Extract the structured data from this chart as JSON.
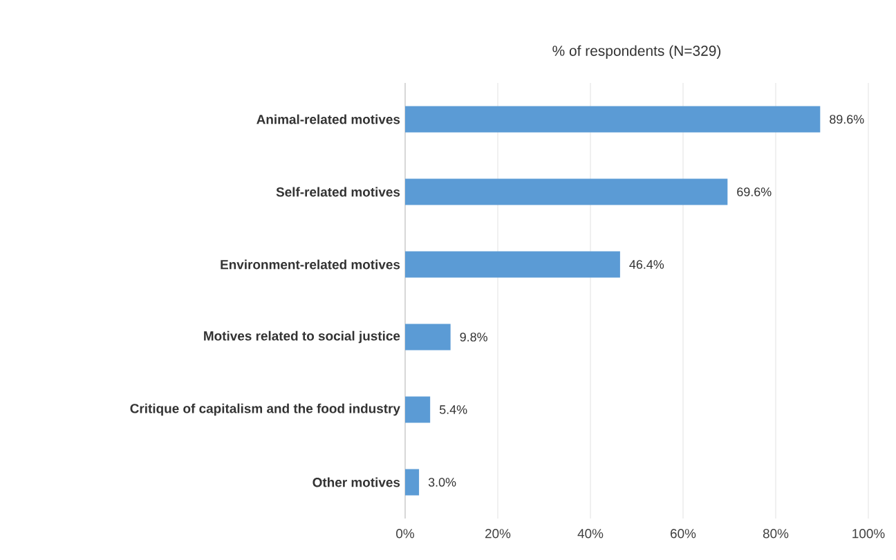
{
  "chart_data": {
    "type": "bar",
    "orientation": "horizontal",
    "title": "% of respondents (N=329)",
    "categories": [
      "Animal-related motives",
      "Self-related motives",
      "Environment-related motives",
      "Motives related to social justice",
      "Critique of capitalism and the food industry",
      "Other motives"
    ],
    "values": [
      89.6,
      69.6,
      46.4,
      9.8,
      5.4,
      3.0
    ],
    "value_labels": [
      "89.6%",
      "69.6%",
      "46.4%",
      "9.8%",
      "5.4%",
      "3.0%"
    ],
    "color": "#5b9bd5",
    "xlim": [
      0,
      100
    ],
    "xticks": [
      {
        "value": 0,
        "label": "0%"
      },
      {
        "value": 20,
        "label": "20%"
      },
      {
        "value": 40,
        "label": "40%"
      },
      {
        "value": 60,
        "label": "60%"
      },
      {
        "value": 80,
        "label": "80%"
      },
      {
        "value": 100,
        "label": "100%"
      }
    ],
    "grid": "x"
  }
}
